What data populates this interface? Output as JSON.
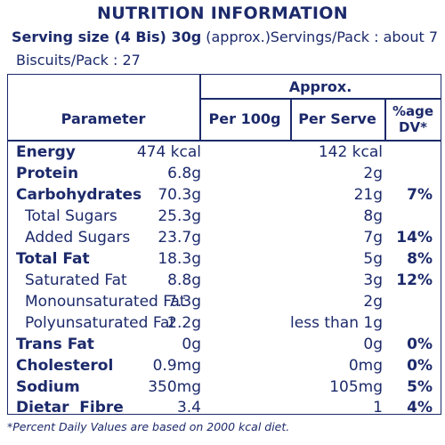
{
  "header": {
    "title": "NUTRITION INFORMATION",
    "serving_size_label": "Serving size (4 Bis) 30g",
    "serving_size_note": "(approx.)",
    "servings_per_pack": "Servings/Pack : about 7",
    "biscuits_per_pack": "Biscuits/Pack : 27"
  },
  "table": {
    "group_header": "Approx.",
    "columns": {
      "parameter": "Parameter",
      "per100g": "Per 100g",
      "per_serve": "Per Serve",
      "dv_line1": "%age",
      "dv_line2": "DV*"
    },
    "rows": [
      {
        "param": "Energy",
        "per100g": "474 kcal",
        "per_serve": "142 kcal",
        "dv": ""
      },
      {
        "param": "Protein",
        "per100g": "6.8g",
        "per_serve": "2g",
        "dv": ""
      },
      {
        "param": "Carbohydrates",
        "per100g": "70.3g",
        "per_serve": "21g",
        "dv": "7%"
      },
      {
        "param": "Total Sugars",
        "per100g": "25.3g",
        "per_serve": "8g",
        "dv": ""
      },
      {
        "param": "Added Sugars",
        "per100g": "23.7g",
        "per_serve": "7g",
        "dv": "14%"
      },
      {
        "param": "Total Fat",
        "per100g": "18.3g",
        "per_serve": "5g",
        "dv": "8%"
      },
      {
        "param": "Saturated Fat",
        "per100g": "8.8g",
        "per_serve": "3g",
        "dv": "12%"
      },
      {
        "param": "Monounsaturated Fat",
        "per100g": "7.3g",
        "per_serve": "2g",
        "dv": ""
      },
      {
        "param": "Polyunsaturated Fat",
        "per100g": "2.2g",
        "per_serve": "less than 1g",
        "dv": ""
      },
      {
        "param": "Trans Fat",
        "per100g": "0g",
        "per_serve": "0g",
        "dv": "0%"
      },
      {
        "param": "Cholesterol",
        "per100g": "0.9mg",
        "per_serve": "0mg",
        "dv": "0%"
      },
      {
        "param": "Sodium",
        "per100g": "350mg",
        "per_serve": "105mg",
        "dv": "5%"
      },
      {
        "param": "Dietar  Fibre",
        "per100g": "3.4",
        "per_serve": "1",
        "dv": "4%"
      }
    ]
  },
  "footnote": "*Percent Daily Values are based on 2000 kcal diet.",
  "colors": {
    "text": "#1c2a6b",
    "background": "#ffffff"
  }
}
